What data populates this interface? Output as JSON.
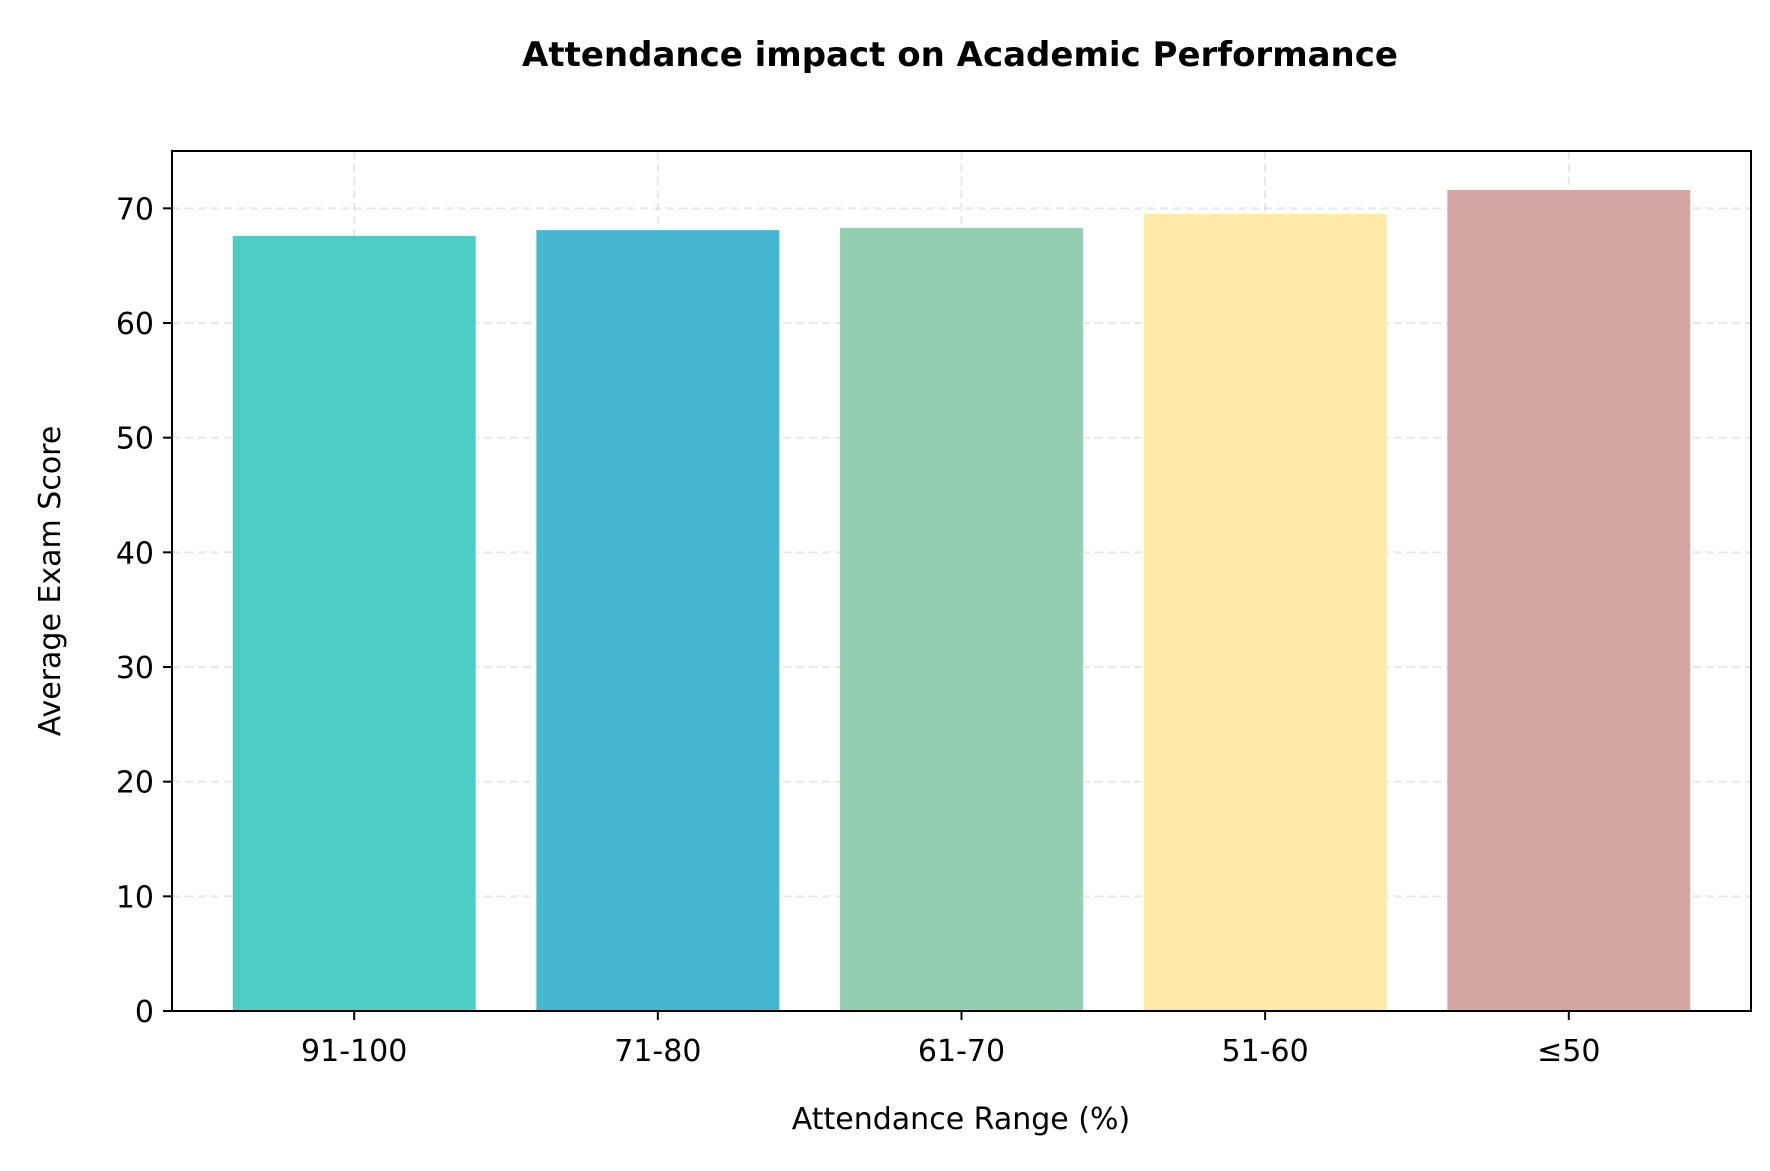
{
  "chart_data": {
    "type": "bar",
    "title": "Attendance impact on Academic Performance",
    "xlabel": "Attendance Range (%)",
    "ylabel": "Average Exam Score",
    "categories": [
      "91-100",
      "71-80",
      "61-70",
      "51-60",
      "≤50"
    ],
    "values": [
      67.6,
      68.1,
      68.3,
      69.5,
      71.6
    ],
    "colors": [
      "#4ecdc4",
      "#45b7d1",
      "#96ceb4",
      "#ffeaa7",
      "#d4a5a5"
    ],
    "ylim": [
      0,
      75
    ],
    "yticks": [
      0,
      10,
      20,
      30,
      40,
      50,
      60,
      70
    ],
    "grid": true
  }
}
